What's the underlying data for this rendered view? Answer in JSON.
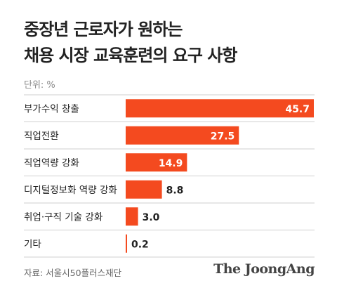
{
  "title_lines": [
    "중장년 근로자가 원하는",
    "채용 시장 교육훈련의 요구 사항"
  ],
  "unit_label": "단위: %",
  "source": "자료: 서울시50플러스재단",
  "logo": "The JoongAng",
  "colors": {
    "bar": "#f44a1f",
    "divider": "#cfcfcf",
    "inner_label": "#ffffff",
    "outer_label": "#222222"
  },
  "chart_data": {
    "type": "bar",
    "orientation": "horizontal",
    "categories": [
      "부가수익 창출",
      "직업전환",
      "직업역량 강화",
      "디지털정보화 역량 강화",
      "취업·구직 기술 강화",
      "기타"
    ],
    "values": [
      45.7,
      27.5,
      14.9,
      8.8,
      3.0,
      0.2
    ],
    "value_labels": [
      "45.7",
      "27.5",
      "14.9",
      "8.8",
      "3.0",
      "0.2"
    ],
    "unit": "%",
    "xlim": [
      0,
      45.7
    ]
  }
}
